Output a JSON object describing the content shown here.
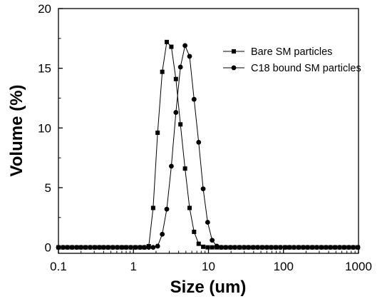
{
  "chart_data": {
    "type": "scatter",
    "xlabel": "Size (um)",
    "ylabel": "Volume (%)",
    "xscale": "log",
    "xlim": [
      0.1,
      1000
    ],
    "ylim": [
      -0.5,
      20
    ],
    "xticks": [
      0.1,
      1,
      10,
      100,
      1000
    ],
    "xtick_labels": [
      "0.1",
      "1",
      "10",
      "100",
      "1000"
    ],
    "yticks": [
      0,
      5,
      10,
      15,
      20
    ],
    "ytick_labels": [
      "0",
      "5",
      "10",
      "15",
      "20"
    ],
    "legend_position": "top-right",
    "grid": false,
    "series": [
      {
        "name": "Bare SM particles",
        "marker": "square",
        "color": "#000000",
        "points": [
          [
            0.1,
            0
          ],
          [
            0.115,
            0
          ],
          [
            0.132,
            0
          ],
          [
            0.152,
            0
          ],
          [
            0.175,
            0
          ],
          [
            0.2,
            0
          ],
          [
            0.23,
            0
          ],
          [
            0.265,
            0
          ],
          [
            0.305,
            0
          ],
          [
            0.35,
            0
          ],
          [
            0.4,
            0
          ],
          [
            0.46,
            0
          ],
          [
            0.53,
            0
          ],
          [
            0.61,
            0
          ],
          [
            0.7,
            0
          ],
          [
            0.8,
            0
          ],
          [
            0.92,
            0
          ],
          [
            1.06,
            0
          ],
          [
            1.22,
            0
          ],
          [
            1.4,
            0
          ],
          [
            1.6,
            0.1
          ],
          [
            1.83,
            3.3
          ],
          [
            2.1,
            9.6
          ],
          [
            2.42,
            14.7
          ],
          [
            2.78,
            17.2
          ],
          [
            3.2,
            16.8
          ],
          [
            3.68,
            14.1
          ],
          [
            4.23,
            10.3
          ],
          [
            4.87,
            6.6
          ],
          [
            5.6,
            3.3
          ],
          [
            6.43,
            1.3
          ],
          [
            7.4,
            0.3
          ],
          [
            8.5,
            0.05
          ],
          [
            9.75,
            0
          ],
          [
            11.2,
            0
          ],
          [
            12.9,
            0
          ],
          [
            14.8,
            0
          ],
          [
            17,
            0
          ],
          [
            19.6,
            0
          ],
          [
            22.5,
            0
          ],
          [
            25.9,
            0
          ],
          [
            29.8,
            0
          ],
          [
            34.2,
            0
          ],
          [
            39.4,
            0
          ],
          [
            45.3,
            0
          ],
          [
            52.1,
            0
          ],
          [
            59.9,
            0
          ],
          [
            68.8,
            0
          ],
          [
            79.2,
            0
          ],
          [
            91,
            0
          ],
          [
            105,
            0
          ],
          [
            120,
            0
          ],
          [
            138,
            0
          ],
          [
            159,
            0
          ],
          [
            183,
            0
          ],
          [
            210,
            0
          ],
          [
            242,
            0
          ],
          [
            278,
            0
          ],
          [
            320,
            0
          ],
          [
            368,
            0
          ],
          [
            423,
            0
          ],
          [
            487,
            0
          ],
          [
            560,
            0
          ],
          [
            644,
            0
          ],
          [
            741,
            0
          ],
          [
            852,
            0
          ],
          [
            980,
            0
          ]
        ]
      },
      {
        "name": "C18 bound SM particles",
        "marker": "circle",
        "color": "#000000",
        "points": [
          [
            0.1,
            0
          ],
          [
            0.115,
            0
          ],
          [
            0.132,
            0
          ],
          [
            0.152,
            0
          ],
          [
            0.175,
            0
          ],
          [
            0.2,
            0
          ],
          [
            0.23,
            0
          ],
          [
            0.265,
            0
          ],
          [
            0.305,
            0
          ],
          [
            0.35,
            0
          ],
          [
            0.4,
            0
          ],
          [
            0.46,
            0
          ],
          [
            0.53,
            0
          ],
          [
            0.61,
            0
          ],
          [
            0.7,
            0
          ],
          [
            0.8,
            0
          ],
          [
            0.92,
            0
          ],
          [
            1.06,
            0
          ],
          [
            1.22,
            0
          ],
          [
            1.4,
            0
          ],
          [
            1.6,
            0
          ],
          [
            1.83,
            0
          ],
          [
            2.1,
            0.1
          ],
          [
            2.42,
            1.1
          ],
          [
            2.78,
            3.2
          ],
          [
            3.2,
            6.8
          ],
          [
            3.68,
            11.3
          ],
          [
            4.23,
            15.1
          ],
          [
            4.87,
            16.9
          ],
          [
            5.6,
            16.0
          ],
          [
            6.43,
            12.4
          ],
          [
            7.4,
            8.8
          ],
          [
            8.5,
            4.9
          ],
          [
            9.75,
            2.1
          ],
          [
            11.2,
            0.6
          ],
          [
            12.9,
            0.1
          ],
          [
            14.8,
            0
          ],
          [
            17,
            0
          ],
          [
            19.6,
            0
          ],
          [
            22.5,
            0
          ],
          [
            25.9,
            0
          ],
          [
            29.8,
            0
          ],
          [
            34.2,
            0
          ],
          [
            39.4,
            0
          ],
          [
            45.3,
            0
          ],
          [
            52.1,
            0
          ],
          [
            59.9,
            0
          ],
          [
            68.8,
            0
          ],
          [
            79.2,
            0
          ],
          [
            91,
            0
          ],
          [
            105,
            0
          ],
          [
            120,
            0
          ],
          [
            138,
            0
          ],
          [
            159,
            0
          ],
          [
            183,
            0
          ],
          [
            210,
            0
          ],
          [
            242,
            0
          ],
          [
            278,
            0
          ],
          [
            320,
            0
          ],
          [
            368,
            0
          ],
          [
            423,
            0
          ],
          [
            487,
            0
          ],
          [
            560,
            0
          ],
          [
            644,
            0
          ],
          [
            741,
            0
          ],
          [
            852,
            0
          ],
          [
            980,
            0
          ]
        ]
      }
    ]
  }
}
